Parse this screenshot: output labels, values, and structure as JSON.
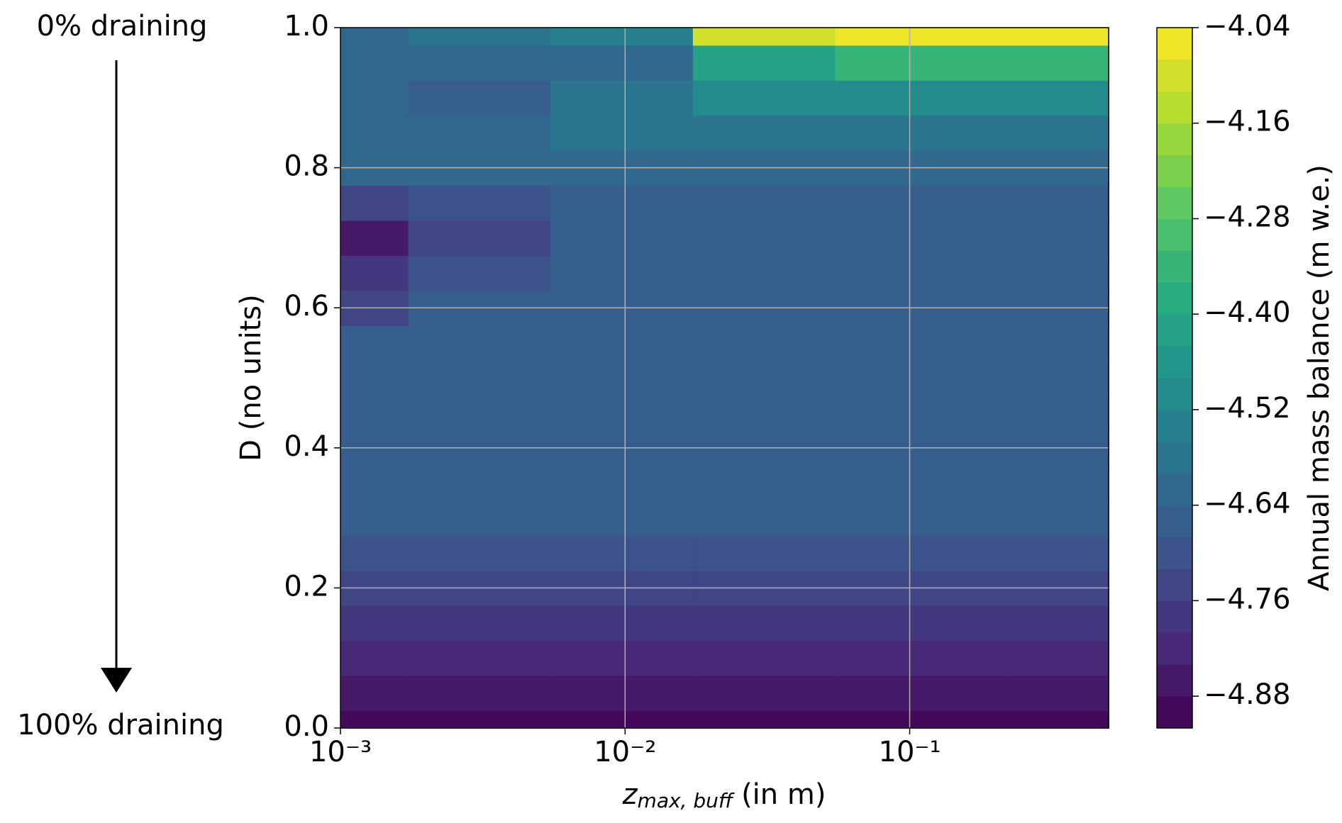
{
  "chart_data": {
    "type": "contour",
    "annotations": {
      "top": "0% draining",
      "bottom": "100% draining"
    },
    "xlabel": {
      "symbol": "z",
      "subscript": "max, buff",
      "unit": "(in m)"
    },
    "ylabel": "D (no units)",
    "colorbar_label": "Annual mass balance (m w.e.)",
    "xscale": "log",
    "grid": true,
    "x": [
      0.001,
      0.003,
      0.01,
      0.03,
      0.1,
      0.5
    ],
    "y": [
      0,
      0.05,
      0.1,
      0.15,
      0.2,
      0.25,
      0.3,
      0.35,
      0.4,
      0.45,
      0.5,
      0.55,
      0.6,
      0.65,
      0.7,
      0.75,
      0.8,
      0.85,
      0.9,
      0.95,
      1.0
    ],
    "z": [
      [
        -4.9,
        -4.9,
        -4.9,
        -4.9,
        -4.9,
        -4.9
      ],
      [
        -4.86,
        -4.86,
        -4.86,
        -4.86,
        -4.86,
        -4.86
      ],
      [
        -4.82,
        -4.82,
        -4.82,
        -4.82,
        -4.82,
        -4.82
      ],
      [
        -4.79,
        -4.79,
        -4.79,
        -4.79,
        -4.79,
        -4.79
      ],
      [
        -4.76,
        -4.76,
        -4.76,
        -4.76,
        -4.76,
        -4.76
      ],
      [
        -4.72,
        -4.72,
        -4.72,
        -4.72,
        -4.72,
        -4.72
      ],
      [
        -4.67,
        -4.67,
        -4.67,
        -4.67,
        -4.67,
        -4.67
      ],
      [
        -4.67,
        -4.67,
        -4.67,
        -4.67,
        -4.67,
        -4.67
      ],
      [
        -4.67,
        -4.67,
        -4.67,
        -4.67,
        -4.67,
        -4.67
      ],
      [
        -4.67,
        -4.67,
        -4.67,
        -4.67,
        -4.67,
        -4.67
      ],
      [
        -4.67,
        -4.67,
        -4.67,
        -4.67,
        -4.67,
        -4.67
      ],
      [
        -4.67,
        -4.67,
        -4.67,
        -4.67,
        -4.67,
        -4.67
      ],
      [
        -4.74,
        -4.68,
        -4.67,
        -4.67,
        -4.67,
        -4.67
      ],
      [
        -4.8,
        -4.72,
        -4.67,
        -4.67,
        -4.67,
        -4.67
      ],
      [
        -4.85,
        -4.76,
        -4.67,
        -4.67,
        -4.67,
        -4.67
      ],
      [
        -4.74,
        -4.7,
        -4.66,
        -4.66,
        -4.66,
        -4.66
      ],
      [
        -4.62,
        -4.63,
        -4.63,
        -4.63,
        -4.63,
        -4.63
      ],
      [
        -4.62,
        -4.64,
        -4.6,
        -4.6,
        -4.58,
        -4.58
      ],
      [
        -4.62,
        -4.67,
        -4.58,
        -4.52,
        -4.52,
        -4.52
      ],
      [
        -4.62,
        -4.62,
        -4.64,
        -4.42,
        -4.36,
        -4.36
      ],
      [
        -4.62,
        -4.6,
        -4.56,
        -4.1,
        -4.04,
        -4.04
      ]
    ],
    "xlim": [
      0.001,
      0.5
    ],
    "ylim": [
      0,
      1
    ],
    "xticks": [
      {
        "value": 0.001,
        "label": "10⁻³"
      },
      {
        "value": 0.01,
        "label": "10⁻²"
      },
      {
        "value": 0.1,
        "label": "10⁻¹"
      }
    ],
    "yticks": [
      {
        "value": 0,
        "label": "0.0"
      },
      0.2,
      0.4,
      0.6,
      0.8,
      {
        "value": 1,
        "label": "1.0"
      }
    ],
    "clim": [
      -4.92,
      -4.04
    ],
    "level_step": 0.04,
    "cticks": [
      {
        "value": -4.04,
        "label": "−4.04"
      },
      {
        "value": -4.16,
        "label": "−4.16"
      },
      {
        "value": -4.28,
        "label": "−4.28"
      },
      {
        "value": -4.4,
        "label": "−4.40"
      },
      {
        "value": -4.52,
        "label": "−4.52"
      },
      {
        "value": -4.64,
        "label": "−4.64"
      },
      {
        "value": -4.76,
        "label": "−4.76"
      },
      {
        "value": -4.88,
        "label": "−4.88"
      }
    ],
    "colormap": [
      "#440154",
      "#472d7b",
      "#3b528b",
      "#2c728e",
      "#21918c",
      "#28ae80",
      "#5ec962",
      "#addc30",
      "#fde725"
    ]
  }
}
